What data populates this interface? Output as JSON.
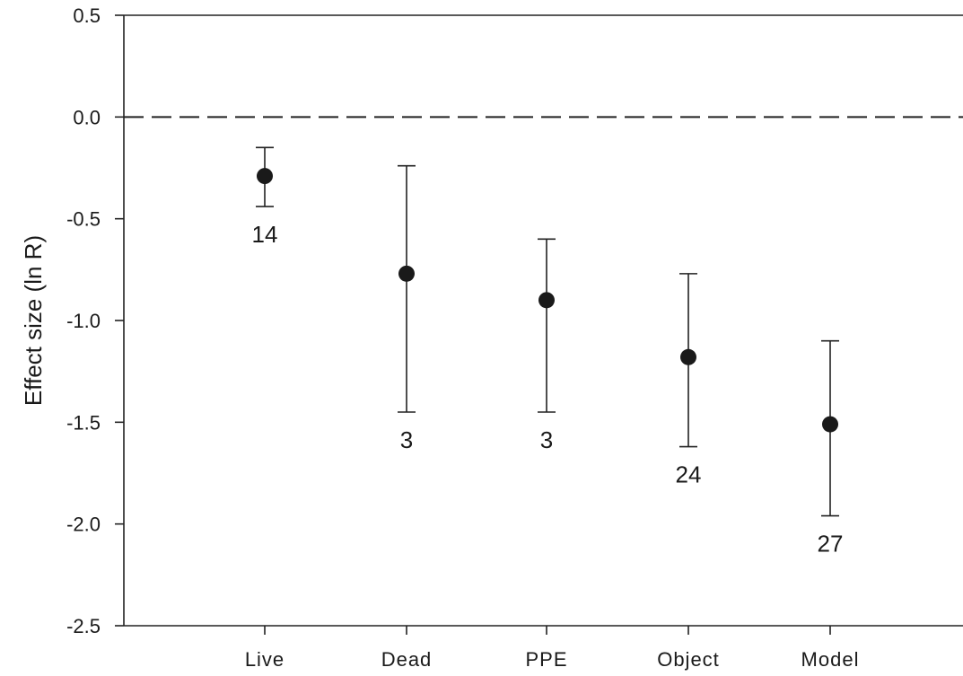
{
  "chart_data": {
    "type": "scatter",
    "title": "",
    "xlabel": "",
    "ylabel": "Effect size (ln R)",
    "ylim": [
      -2.5,
      0.5
    ],
    "yticks": [
      "0.5",
      "0.0",
      "-0.5",
      "-1.0",
      "-1.5",
      "-2.0",
      "-2.5"
    ],
    "ytick_values": [
      0.5,
      0.0,
      -0.5,
      -1.0,
      -1.5,
      -2.0,
      -2.5
    ],
    "reference_line": {
      "y": 0.0,
      "style": "dashed"
    },
    "grid": false,
    "categories": [
      "Live",
      "Dead",
      "PPE",
      "Object",
      "Model"
    ],
    "values": [
      -0.29,
      -0.77,
      -0.9,
      -1.18,
      -1.51
    ],
    "ci_lower": [
      -0.44,
      -1.45,
      -1.45,
      -1.62,
      -1.96
    ],
    "ci_upper": [
      -0.15,
      -0.24,
      -0.6,
      -0.77,
      -1.1
    ],
    "n": [
      "14",
      "3",
      "3",
      "24",
      "27"
    ]
  }
}
